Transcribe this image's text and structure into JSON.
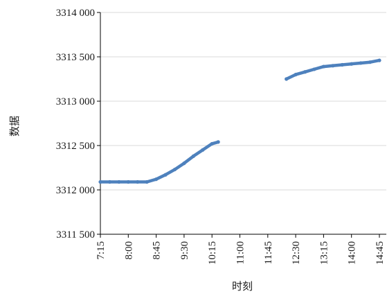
{
  "chart_data": {
    "type": "line",
    "title": "",
    "xlabel": "时刻",
    "ylabel": "数据",
    "ylim": [
      3311500,
      3314000
    ],
    "yticks": [
      3311500,
      3312000,
      3312500,
      3313000,
      3313500,
      3314000
    ],
    "ytick_labels": [
      "3311 500",
      "3312 000",
      "3312 500",
      "3313 000",
      "3313 500",
      "3314 000"
    ],
    "xlim": [
      "7:15",
      "14:45"
    ],
    "xticks": [
      "7:15",
      "8:00",
      "8:45",
      "9:30",
      "10:15",
      "11:00",
      "11:45",
      "12:30",
      "13:15",
      "14:00",
      "14:45"
    ],
    "grid": "horizontal",
    "legend": "none",
    "line_color": "#4e81bd",
    "series": [
      {
        "segments": [
          [
            {
              "x": "7:15",
              "y": 3312090
            },
            {
              "x": "7:30",
              "y": 3312090
            },
            {
              "x": "7:45",
              "y": 3312090
            },
            {
              "x": "8:00",
              "y": 3312090
            },
            {
              "x": "8:15",
              "y": 3312090
            },
            {
              "x": "8:30",
              "y": 3312090
            },
            {
              "x": "8:45",
              "y": 3312120
            },
            {
              "x": "9:00",
              "y": 3312170
            },
            {
              "x": "9:15",
              "y": 3312230
            },
            {
              "x": "9:30",
              "y": 3312300
            },
            {
              "x": "9:45",
              "y": 3312380
            },
            {
              "x": "10:00",
              "y": 3312450
            },
            {
              "x": "10:15",
              "y": 3312520
            },
            {
              "x": "10:25",
              "y": 3312540
            }
          ],
          [
            {
              "x": "12:15",
              "y": 3313250
            },
            {
              "x": "12:30",
              "y": 3313300
            },
            {
              "x": "12:45",
              "y": 3313330
            },
            {
              "x": "13:00",
              "y": 3313360
            },
            {
              "x": "13:15",
              "y": 3313390
            },
            {
              "x": "13:30",
              "y": 3313400
            },
            {
              "x": "13:45",
              "y": 3313410
            },
            {
              "x": "14:00",
              "y": 3313420
            },
            {
              "x": "14:15",
              "y": 3313430
            },
            {
              "x": "14:30",
              "y": 3313440
            },
            {
              "x": "14:45",
              "y": 3313460
            }
          ]
        ]
      }
    ]
  }
}
